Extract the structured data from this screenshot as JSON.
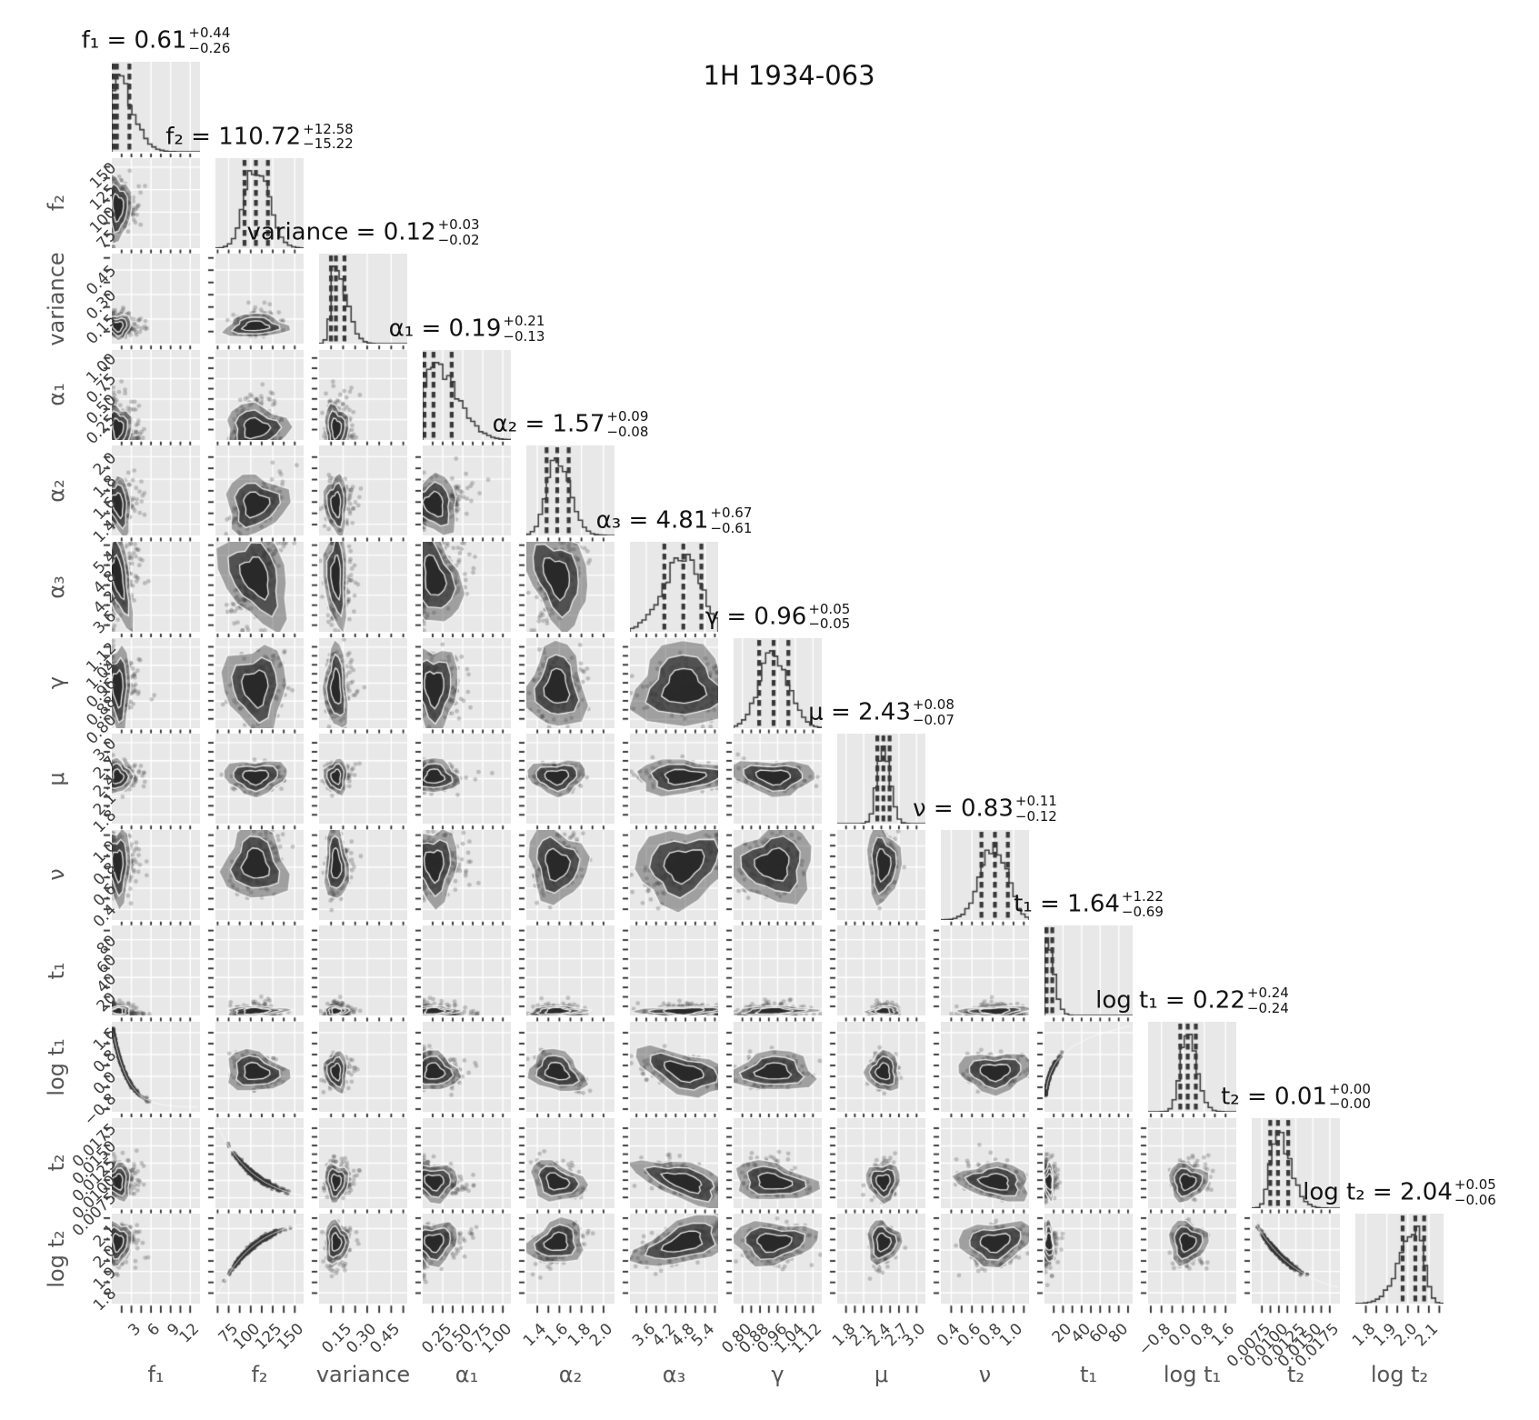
{
  "figure": {
    "colors": {
      "background": "#ffffff",
      "panel_background": "#e8e8e8",
      "grid_line": "#ffffff",
      "data_dark": "#3b3b3b",
      "histogram_line": "#3d3d3d",
      "quantile_dash": "#383838",
      "tick_mark": "#262626",
      "tick_label": "#3f3f3f",
      "axis_label": "#555555",
      "title_text": "#121212"
    }
  },
  "chart_data": {
    "type": "scatter",
    "subtype": "corner-plot-mcmc-posterior",
    "plot_title": "1H 1934-063",
    "n_params": 13,
    "grid": "on",
    "parameters": [
      {
        "id": "f1",
        "axis_label": "f₁",
        "summary": {
          "name": "f₁",
          "value": "0.61",
          "plus": "+0.44",
          "minus": "−0.26"
        },
        "range": [
          0,
          13.5
        ],
        "tick_values": [
          3,
          6,
          9,
          12
        ],
        "tick_labels": [
          "3",
          "6",
          "9",
          "12"
        ],
        "hist": {
          "peak": 0.045,
          "width": 0.05,
          "skew": 3.0
        }
      },
      {
        "id": "f2",
        "axis_label": "f₂",
        "summary": {
          "name": "f₂",
          "value": "110.72",
          "plus": "+12.58",
          "minus": "−15.22"
        },
        "range": [
          60,
          160
        ],
        "tick_values": [
          75,
          100,
          125,
          150
        ],
        "tick_labels": [
          "75",
          "100",
          "125",
          "150"
        ],
        "hist": {
          "peak": 0.45,
          "width": 0.12,
          "skew": 0.3
        }
      },
      {
        "id": "variance",
        "axis_label": "variance",
        "summary": {
          "name": "variance",
          "value": "0.12",
          "plus": "+0.03",
          "minus": "−0.02"
        },
        "range": [
          0,
          0.55
        ],
        "tick_values": [
          0.15,
          0.3,
          0.45
        ],
        "tick_labels": [
          "0.15",
          "0.30",
          "0.45"
        ],
        "hist": {
          "peak": 0.18,
          "width": 0.045,
          "skew": 2.0
        }
      },
      {
        "id": "a1",
        "axis_label": "α₁",
        "summary": {
          "name": "α₁",
          "value": "0.19",
          "plus": "+0.21",
          "minus": "−0.13"
        },
        "range": [
          0,
          1.1
        ],
        "tick_values": [
          0.25,
          0.5,
          0.75,
          1.0
        ],
        "tick_labels": [
          "0.25",
          "0.50",
          "0.75",
          "1.00"
        ],
        "hist": {
          "peak": 0.1,
          "width": 0.09,
          "skew": 2.2
        }
      },
      {
        "id": "a2",
        "axis_label": "α₂",
        "summary": {
          "name": "α₂",
          "value": "1.57",
          "plus": "+0.09",
          "minus": "−0.08"
        },
        "range": [
          1.3,
          2.1
        ],
        "tick_values": [
          1.4,
          1.6,
          1.8,
          2.0
        ],
        "tick_labels": [
          "1.4",
          "1.6",
          "1.8",
          "2.0"
        ],
        "hist": {
          "peak": 0.34,
          "width": 0.11,
          "skew": 0.4
        }
      },
      {
        "id": "a3",
        "axis_label": "α₃",
        "summary": {
          "name": "α₃",
          "value": "4.81",
          "plus": "+0.67",
          "minus": "−0.61"
        },
        "range": [
          3.1,
          5.8
        ],
        "tick_values": [
          3.6,
          4.2,
          4.8,
          5.4
        ],
        "tick_labels": [
          "3.6",
          "4.2",
          "4.8",
          "5.4"
        ],
        "hist": {
          "peak": 0.62,
          "width": 0.19,
          "skew": -0.3
        }
      },
      {
        "id": "g",
        "axis_label": "γ",
        "summary": {
          "name": "γ",
          "value": "0.96",
          "plus": "+0.05",
          "minus": "−0.05"
        },
        "range": [
          0.76,
          1.16
        ],
        "tick_values": [
          0.8,
          0.88,
          0.96,
          1.04,
          1.12
        ],
        "tick_labels": [
          "0.80",
          "0.88",
          "0.96",
          "1.04",
          "1.12"
        ],
        "hist": {
          "peak": 0.45,
          "width": 0.16,
          "skew": 0.1
        }
      },
      {
        "id": "mu",
        "axis_label": "μ",
        "summary": {
          "name": "μ",
          "value": "2.43",
          "plus": "+0.08",
          "minus": "−0.07"
        },
        "range": [
          1.65,
          3.15
        ],
        "tick_values": [
          1.8,
          2.1,
          2.4,
          2.7,
          3.0
        ],
        "tick_labels": [
          "1.8",
          "2.1",
          "2.4",
          "2.7",
          "3.0"
        ],
        "hist": {
          "peak": 0.52,
          "width": 0.065,
          "skew": 0.2
        }
      },
      {
        "id": "nu",
        "axis_label": "ν",
        "summary": {
          "name": "ν",
          "value": "0.83",
          "plus": "+0.11",
          "minus": "−0.12"
        },
        "range": [
          0.3,
          1.15
        ],
        "tick_values": [
          0.4,
          0.6,
          0.8,
          1.0
        ],
        "tick_labels": [
          "0.4",
          "0.6",
          "0.8",
          "1.0"
        ],
        "hist": {
          "peak": 0.62,
          "width": 0.14,
          "skew": -0.2
        }
      },
      {
        "id": "t1",
        "axis_label": "t₁",
        "summary": {
          "name": "t₁",
          "value": "1.64",
          "plus": "+1.22",
          "minus": "−0.69"
        },
        "range": [
          0,
          95
        ],
        "tick_values": [
          20,
          40,
          60,
          80
        ],
        "tick_labels": [
          "20",
          "40",
          "60",
          "80"
        ],
        "hist": {
          "peak": 0.02,
          "width": 0.018,
          "skew": 4.0
        }
      },
      {
        "id": "lt1",
        "axis_label": "log t₁",
        "summary": {
          "name": "log t₁",
          "value": "0.22",
          "plus": "+0.24",
          "minus": "−0.24"
        },
        "range": [
          -1.3,
          2.0
        ],
        "tick_values": [
          -0.8,
          0.0,
          0.8,
          1.6
        ],
        "tick_labels": [
          "−0.8",
          "0.0",
          "0.8",
          "1.6"
        ],
        "hist": {
          "peak": 0.44,
          "width": 0.075,
          "skew": 0.5
        }
      },
      {
        "id": "t2",
        "axis_label": "t₂",
        "summary": {
          "name": "t₂",
          "value": "0.01",
          "plus": "+0.00",
          "minus": "−0.00"
        },
        "range": [
          0.006,
          0.019
        ],
        "tick_values": [
          0.0075,
          0.01,
          0.0125,
          0.015,
          0.0175
        ],
        "tick_labels": [
          "0.0075",
          "0.0100",
          "0.0125",
          "0.0150",
          "0.0175"
        ],
        "hist": {
          "peak": 0.28,
          "width": 0.07,
          "skew": 1.3
        }
      },
      {
        "id": "lt2",
        "axis_label": "log t₂",
        "summary": {
          "name": "log t₂",
          "value": "2.04",
          "plus": "+0.05",
          "minus": "−0.06"
        },
        "range": [
          1.75,
          2.17
        ],
        "tick_values": [
          1.8,
          1.9,
          2.0,
          2.1
        ],
        "tick_labels": [
          "1.8",
          "1.9",
          "2.0",
          "2.1"
        ],
        "hist": {
          "peak": 0.7,
          "width": 0.08,
          "skew": -1.5
        }
      }
    ],
    "correlations": {
      "a2|f1": 0.3,
      "a3|f1": 0.25,
      "a2|f2": 0.65,
      "a3|f2": 0.6,
      "nu|f2": 0.3,
      "g|f2": 0.15,
      "a2|a1": 0.45,
      "a3|a1": 0.35,
      "a3|a2": 0.55,
      "nu|a2": 0.35,
      "nu|a3": 0.6,
      "nu|g": 0.15,
      "mu|g": -0.1,
      "lt1|f2": -0.3,
      "lt1|a1": -0.3,
      "lt1|a2": -0.6,
      "lt1|a3": -0.45,
      "t2|a1": -0.3,
      "t2|a2": -0.55,
      "t2|a3": -0.5,
      "t2|g": -0.25,
      "t2|nu": -0.2,
      "lt2|a1": 0.3,
      "lt2|a2": 0.55,
      "lt2|a3": 0.5,
      "lt2|nu": 0.25
    },
    "default_correlation": 0.05,
    "curved_pairs": [
      {
        "row": "lt1",
        "col": "f1",
        "type": "decay",
        "k": 6.0
      },
      {
        "row": "t2",
        "col": "f2",
        "type": "decay",
        "k": 2.4
      },
      {
        "row": "lt2",
        "col": "f2",
        "type": "rise",
        "k": 2.4
      },
      {
        "row": "lt1",
        "col": "t1",
        "type": "logrise",
        "k": 60
      },
      {
        "row": "lt2",
        "col": "t2",
        "type": "decay",
        "k": 2.0
      }
    ],
    "quantile_lines_per_histogram": 3
  }
}
